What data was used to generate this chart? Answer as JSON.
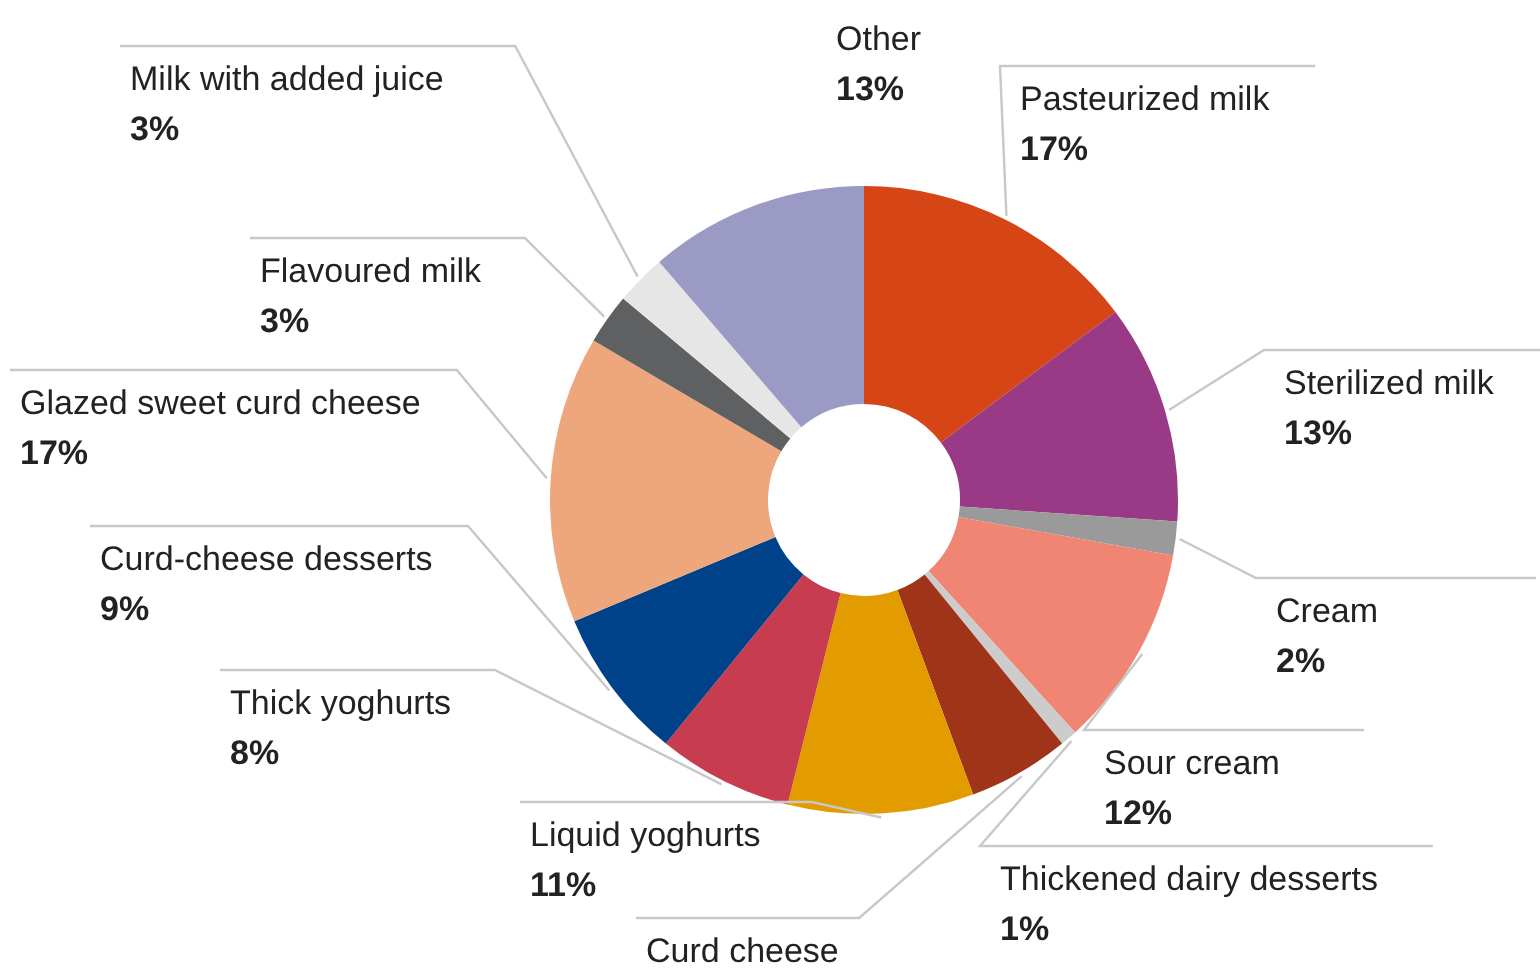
{
  "chart_data": {
    "type": "donut",
    "categories": [
      "Pasteurized milk",
      "Sterilized milk",
      "Cream",
      "Sour cream",
      "Thickened dairy desserts",
      "Curd cheese",
      "Liquid yoghurts",
      "Thick yoghurts",
      "Curd-cheese desserts",
      "Glazed sweet curd cheese",
      "Flavoured milk",
      "Milk with added juice",
      "Other"
    ],
    "values": [
      17,
      13,
      2,
      12,
      1,
      6,
      11,
      8,
      9,
      17,
      3,
      3,
      13
    ],
    "value_labels": [
      "17%",
      "13%",
      "2%",
      "12%",
      "1%",
      null,
      "11%",
      "8%",
      "9%",
      "17%",
      "3%",
      "3%",
      "13%"
    ],
    "colors": [
      "#d64516",
      "#9a3a87",
      "#9a9a9a",
      "#ef8572",
      "#cccccc",
      "#a03418",
      "#e39c00",
      "#c83c50",
      "#00428a",
      "#eea77c",
      "#5f6062",
      "#e6e6e6",
      "#9a9ac4"
    ]
  }
}
